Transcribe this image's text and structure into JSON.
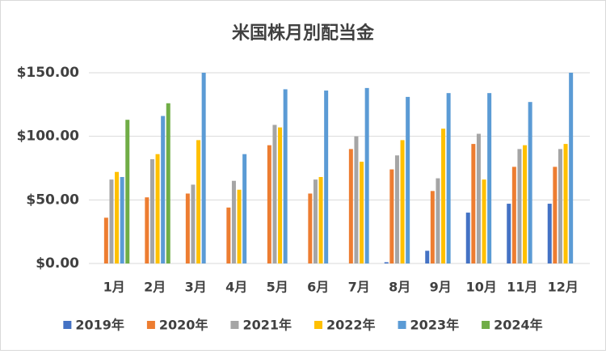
{
  "chart_data": {
    "type": "bar",
    "title": "米国株月別配当金",
    "categories": [
      "1月",
      "2月",
      "3月",
      "4月",
      "5月",
      "6月",
      "7月",
      "8月",
      "9月",
      "10月",
      "11月",
      "12月"
    ],
    "series": [
      {
        "name": "2019年",
        "color": "#4472c4",
        "values": [
          null,
          null,
          null,
          null,
          null,
          null,
          null,
          1,
          10,
          40,
          47,
          47
        ]
      },
      {
        "name": "2020年",
        "color": "#ed7d31",
        "values": [
          36,
          52,
          55,
          44,
          93,
          55,
          90,
          74,
          57,
          94,
          76,
          76
        ]
      },
      {
        "name": "2021年",
        "color": "#a5a5a5",
        "values": [
          66,
          82,
          62,
          65,
          109,
          66,
          100,
          85,
          67,
          102,
          90,
          90
        ]
      },
      {
        "name": "2022年",
        "color": "#ffc000",
        "values": [
          72,
          86,
          97,
          58,
          107,
          68,
          80,
          97,
          106,
          66,
          93,
          94
        ]
      },
      {
        "name": "2023年",
        "color": "#5b9bd5",
        "values": [
          68,
          116,
          150,
          86,
          137,
          136,
          138,
          131,
          134,
          134,
          127,
          150
        ]
      },
      {
        "name": "2024年",
        "color": "#70ad47",
        "values": [
          113,
          126,
          null,
          null,
          null,
          null,
          null,
          null,
          null,
          null,
          null,
          null
        ]
      }
    ],
    "ylim": [
      0,
      150
    ],
    "yticks": [
      {
        "value": 0,
        "label": "$0.00"
      },
      {
        "value": 50,
        "label": "$50.00"
      },
      {
        "value": 100,
        "label": "$100.00"
      },
      {
        "value": 150,
        "label": "$150.00"
      }
    ],
    "grid": true,
    "legend": "bottom"
  }
}
